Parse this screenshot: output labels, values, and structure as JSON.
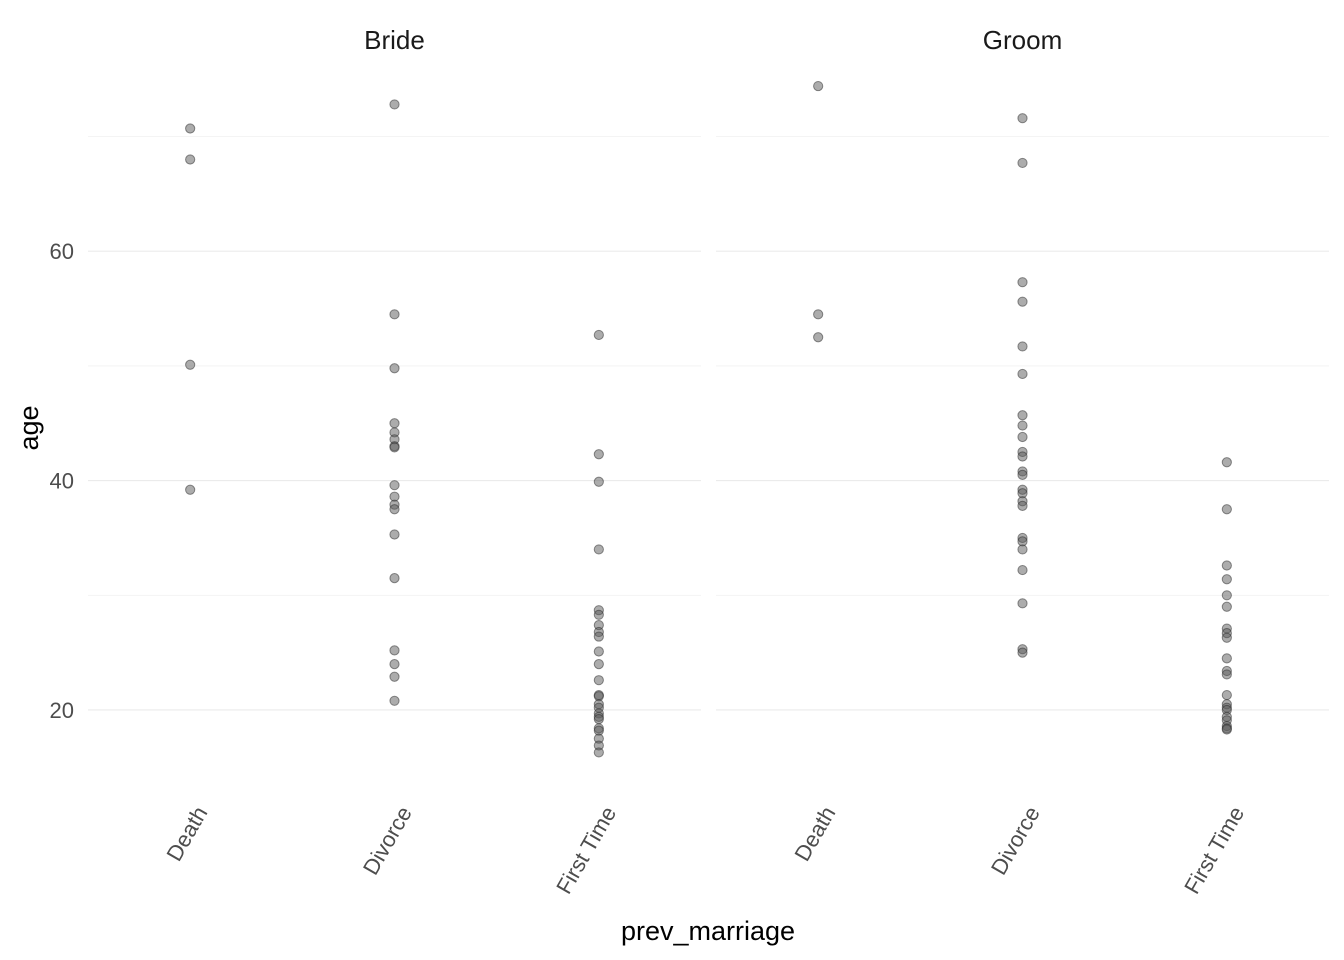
{
  "chart_data": {
    "type": "scatter",
    "facet_by": "role",
    "xlabel": "prev_marriage",
    "ylabel": "age",
    "categories": [
      "Death",
      "Divorce",
      "First Time"
    ],
    "y_ticks": [
      20,
      40,
      60
    ],
    "ylim": [
      12.5,
      76.5
    ],
    "grid": true,
    "panels": [
      {
        "name": "Bride",
        "points": {
          "Death": [
            70.7,
            68.0,
            50.1,
            39.2
          ],
          "Divorce": [
            72.8,
            54.5,
            49.8,
            45.0,
            44.2,
            43.6,
            43.0,
            42.9,
            39.6,
            38.6,
            37.9,
            37.5,
            35.3,
            31.5,
            25.2,
            24.0,
            22.9,
            20.8
          ],
          "First Time": [
            52.7,
            42.3,
            39.9,
            34.0,
            28.7,
            28.3,
            27.4,
            26.8,
            26.4,
            25.1,
            24.0,
            22.6,
            21.3,
            21.2,
            20.5,
            20.2,
            19.7,
            19.4,
            19.2,
            18.4,
            18.2,
            17.5,
            16.9,
            16.3
          ]
        }
      },
      {
        "name": "Groom",
        "points": {
          "Death": [
            74.4,
            54.5,
            52.5
          ],
          "Divorce": [
            71.6,
            67.7,
            57.3,
            55.6,
            51.7,
            49.3,
            45.7,
            44.8,
            43.8,
            42.5,
            42.1,
            40.8,
            40.5,
            39.2,
            38.9,
            38.2,
            37.8,
            35.0,
            34.7,
            34.0,
            32.2,
            29.3,
            25.3,
            25.0
          ],
          "First Time": [
            41.6,
            37.5,
            32.6,
            31.4,
            30.0,
            29.0,
            27.1,
            26.7,
            26.3,
            24.5,
            23.4,
            23.1,
            21.3,
            20.5,
            20.2,
            20.0,
            19.4,
            19.1,
            18.6,
            18.4,
            18.3
          ]
        }
      }
    ],
    "point_color": "#595959",
    "point_alpha": 0.5
  }
}
